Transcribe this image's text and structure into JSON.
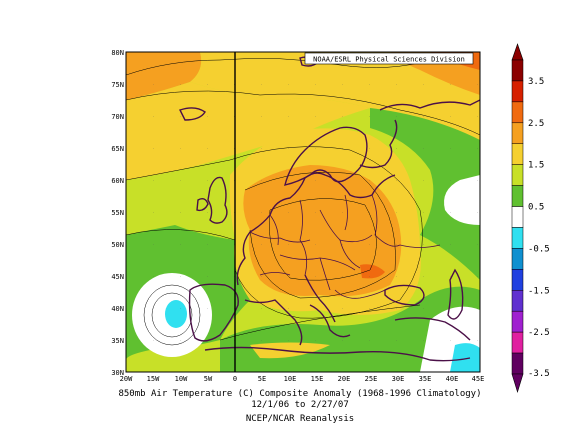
{
  "credit": "NOAA/ESRL Physical Sciences Division",
  "caption": {
    "line1": "850mb Air Temperature (C) Composite Anomaly (1968-1996 Climatology)",
    "line2": "12/1/06  to 2/27/07",
    "line3": "NCEP/NCAR Reanalysis"
  },
  "axes": {
    "lat_labels": [
      "80N",
      "75N",
      "70N",
      "65N",
      "60N",
      "55N",
      "50N",
      "45N",
      "40N",
      "35N",
      "30N"
    ],
    "lon_labels": [
      "20W",
      "15W",
      "10W",
      "5W",
      "0",
      "5E",
      "10E",
      "15E",
      "20E",
      "25E",
      "30E",
      "35E",
      "40E",
      "45E"
    ]
  },
  "colorbar": {
    "labels": [
      "3.5",
      "2.5",
      "1.5",
      "0.5",
      "-0.5",
      "-1.5",
      "-2.5",
      "-3.5"
    ],
    "colors": [
      "#8b0000",
      "#d62000",
      "#f06a10",
      "#f5a020",
      "#f5d030",
      "#c8e028",
      "#60c030",
      "#ffffff",
      "#30e0f0",
      "#1090d0",
      "#2040e0",
      "#6030d0",
      "#a020d0",
      "#e020a0",
      "#600060"
    ]
  },
  "chart_data": {
    "type": "heatmap",
    "variable": "850mb Air Temperature (C) Composite Anomaly",
    "lon_range": [
      -20,
      45
    ],
    "lat_range": [
      30,
      80
    ],
    "levels": [
      -3.5,
      -2.5,
      -1.5,
      -0.5,
      0.5,
      1.5,
      2.5,
      3.5
    ]
  }
}
